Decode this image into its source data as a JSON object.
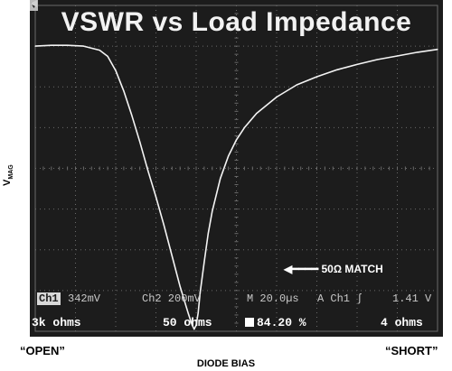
{
  "chart_data": {
    "type": "line",
    "title": "VSWR vs Load Impedance",
    "ylabel_main": "V",
    "ylabel_sub": "MAG",
    "xlabel": "DIODE BIAS",
    "x_left_label": "“OPEN”",
    "x_right_label": "“SHORT”",
    "xlim": [
      0,
      10
    ],
    "ylim": [
      0,
      8
    ],
    "grid": true,
    "series": [
      {
        "x": [
          0.0,
          0.4,
          0.8,
          1.2,
          1.6,
          1.8,
          2.0,
          2.2,
          2.4,
          2.6,
          2.8,
          3.0,
          3.2,
          3.4,
          3.6,
          3.8,
          3.9,
          3.95,
          4.0,
          4.05,
          4.1,
          4.2,
          4.3,
          4.4,
          4.6,
          4.8,
          5.0,
          5.2,
          5.5,
          6.0,
          6.5,
          7.0,
          7.5,
          8.0,
          8.5,
          9.0,
          9.5,
          10.0
        ],
        "y": [
          7.0,
          7.02,
          7.02,
          7.0,
          6.9,
          6.75,
          6.4,
          5.9,
          5.3,
          4.65,
          3.95,
          3.3,
          2.6,
          1.85,
          1.1,
          0.45,
          0.15,
          0.05,
          0.15,
          0.45,
          0.95,
          1.7,
          2.4,
          2.95,
          3.75,
          4.3,
          4.7,
          5.0,
          5.35,
          5.75,
          6.05,
          6.25,
          6.42,
          6.55,
          6.67,
          6.76,
          6.85,
          6.92
        ]
      }
    ],
    "annotation": "50Ω MATCH",
    "scope_status": {
      "ch1_tag": "Ch1",
      "ch1_scale": "342mV",
      "ch2": "Ch2  200mV",
      "timebase": "M 20.0µs",
      "trigger": "A  Ch1  ʃ",
      "trigger_level": "1.41 V"
    },
    "bottom_labels": {
      "left": "3k ohms",
      "center": "50 ohms",
      "readout": "84.20 %",
      "right": "4 ohms"
    }
  },
  "colors": {
    "screen": "#1c1c1c",
    "grid": "#6a6a6a",
    "trace": "#f4f4f4"
  }
}
